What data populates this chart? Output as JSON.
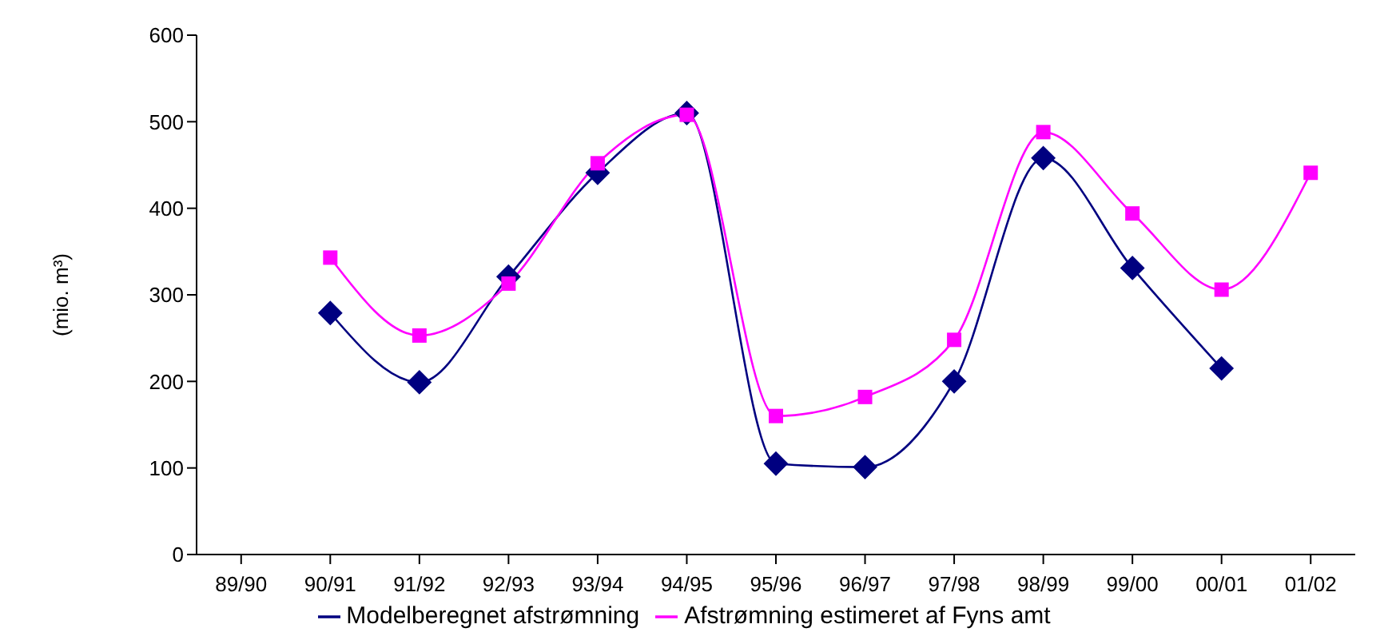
{
  "chart_data": {
    "type": "line",
    "ylabel": "(mio. m³)",
    "categories": [
      "89/90",
      "90/91",
      "91/92",
      "92/93",
      "93/94",
      "94/95",
      "95/96",
      "96/97",
      "97/98",
      "98/99",
      "99/00",
      "00/01",
      "01/02"
    ],
    "series": [
      {
        "name": "Modelberegnet afstrømning",
        "color": "#000080",
        "marker": "diamond",
        "values": [
          null,
          279,
          199,
          321,
          441,
          510,
          105,
          101,
          200,
          458,
          331,
          215,
          null
        ]
      },
      {
        "name": "Afstrømning estimeret af Fyns amt",
        "color": "#ff00ff",
        "marker": "square",
        "values": [
          null,
          343,
          253,
          313,
          452,
          508,
          160,
          182,
          248,
          488,
          394,
          306,
          441
        ]
      }
    ],
    "ylim": [
      0,
      600
    ],
    "yticks": [
      0,
      100,
      200,
      300,
      400,
      500,
      600
    ],
    "grid": false,
    "legend": "bottom",
    "line_style": "solid"
  }
}
